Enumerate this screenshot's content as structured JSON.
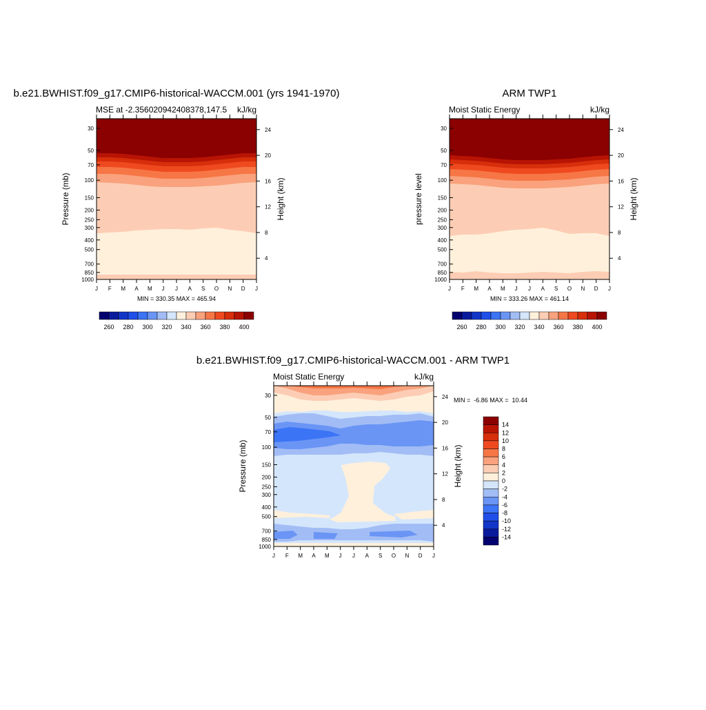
{
  "chart_data": [
    {
      "type": "contour",
      "title": "b.e21.BWHIST.f09_g17.CMIP6-historical-WACCM.001 (yrs 1941-1970)",
      "subtitle_left": "MSE at -2.356020942408378,147.5",
      "subtitle_right": "kJ/kg",
      "ylabel": "Pressure (mb)",
      "y2label": "Height (km)",
      "categories": [
        "J",
        "F",
        "M",
        "A",
        "M",
        "J",
        "J",
        "A",
        "S",
        "O",
        "N",
        "D",
        "J"
      ],
      "ylim": [
        1000,
        24
      ],
      "log_y": true,
      "yticks": [
        30,
        50,
        70,
        100,
        150,
        200,
        250,
        300,
        400,
        500,
        700,
        850,
        1000
      ],
      "y2lim": [
        0.7,
        25.7
      ],
      "y2ticks": [
        4,
        8,
        12,
        16,
        20,
        24
      ],
      "stats": "MIN = 330.35 MAX = 465.94",
      "colors": [
        "#03006f",
        "#0a1a9c",
        "#1236c8",
        "#1f4fe8",
        "#3b74f5",
        "#6a95f5",
        "#a2bdf5",
        "#d4e6fb",
        "#fff0dc",
        "#fccdb4",
        "#f9a27d",
        "#f77646",
        "#ef4a1f",
        "#d72e0b",
        "#b81404",
        "#8b0000"
      ],
      "colorbar_labels": [
        260,
        280,
        300,
        320,
        340,
        360,
        380,
        400
      ]
    },
    {
      "type": "contour",
      "title": "ARM TWP1",
      "subtitle_left": "Moist Static Energy",
      "subtitle_right": "kJ/kg",
      "ylabel": "pressure level",
      "y2label": "Height (km)",
      "categories": [
        "J",
        "F",
        "M",
        "A",
        "M",
        "J",
        "J",
        "A",
        "S",
        "O",
        "N",
        "D",
        "J"
      ],
      "ylim": [
        1000,
        24
      ],
      "log_y": true,
      "yticks": [
        30,
        50,
        70,
        100,
        150,
        200,
        250,
        300,
        400,
        500,
        700,
        850,
        1000
      ],
      "y2lim": [
        0.7,
        25.7
      ],
      "y2ticks": [
        4,
        8,
        12,
        16,
        20,
        24
      ],
      "stats": "MIN = 333.26 MAX = 461.14",
      "colors": [
        "#03006f",
        "#0a1a9c",
        "#1236c8",
        "#1f4fe8",
        "#3b74f5",
        "#6a95f5",
        "#a2bdf5",
        "#d4e6fb",
        "#fff0dc",
        "#fccdb4",
        "#f9a27d",
        "#f77646",
        "#ef4a1f",
        "#d72e0b",
        "#b81404",
        "#8b0000"
      ],
      "colorbar_labels": [
        260,
        280,
        300,
        320,
        340,
        360,
        380,
        400
      ]
    },
    {
      "type": "contour",
      "title": "b.e21.BWHIST.f09_g17.CMIP6-historical-WACCM.001 - ARM TWP1",
      "subtitle_left": "Moist Static Energy",
      "subtitle_right": "kJ/kg",
      "ylabel": "Pressure (mb)",
      "y2label": "Height (km)",
      "categories": [
        "J",
        "F",
        "M",
        "A",
        "M",
        "J",
        "J",
        "A",
        "S",
        "O",
        "N",
        "D",
        "J"
      ],
      "ylim": [
        1000,
        24
      ],
      "log_y": true,
      "yticks": [
        30,
        50,
        70,
        100,
        150,
        200,
        250,
        300,
        400,
        500,
        700,
        850,
        1000
      ],
      "y2lim": [
        0.7,
        25.7
      ],
      "y2ticks": [
        4,
        8,
        12,
        16,
        20,
        24
      ],
      "stats": "MIN =  -6.86 MAX =  10.44",
      "colors": [
        "#03006f",
        "#0a1a9c",
        "#1236c8",
        "#1f4fe8",
        "#3b74f5",
        "#6a95f5",
        "#a2bdf5",
        "#d4e6fb",
        "#fff0dc",
        "#fccdb4",
        "#f9a27d",
        "#f77646",
        "#ef4a1f",
        "#d72e0b",
        "#b81404",
        "#8b0000"
      ],
      "colorbar_labels": [
        14,
        12,
        10,
        8,
        6,
        4,
        2,
        0,
        -2,
        -4,
        -6,
        -8,
        -10,
        -12,
        -14
      ]
    }
  ]
}
